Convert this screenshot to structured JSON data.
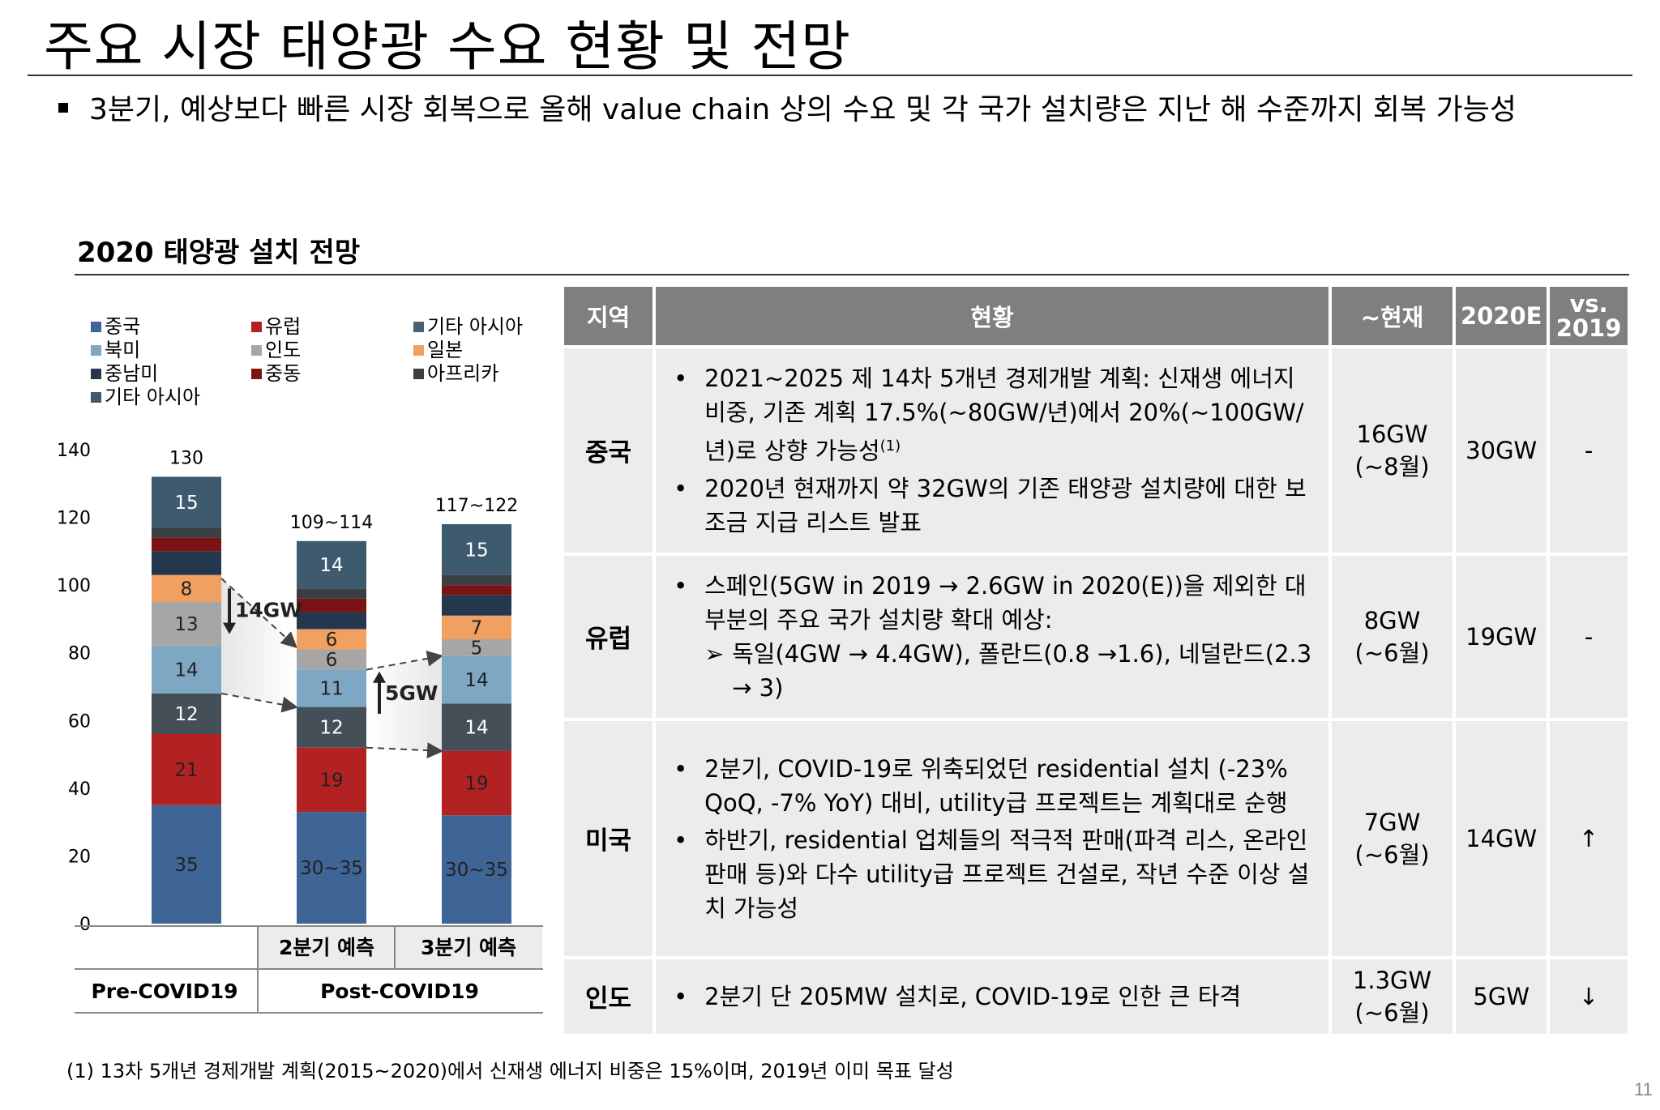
{
  "title": "주요 시장 태양광 수요 현황 및 전망",
  "bullet": "3분기, 예상보다 빠른 시장 회복으로 올해 value chain 상의 수요 및 각 국가 설치량은 지난 해 수준까지 회복 가능성",
  "section_title": "2020 태양광 설치 전망",
  "footnote": "(1) 13차 5개년 경제개발 계획(2015~2020)에서 신재생 에너지 비중은 15%이며, 2019년 이미 목표 달성",
  "page_number": "11",
  "chart_data": {
    "type": "bar",
    "stacked": true,
    "categories": [
      "Pre-COVID19",
      "2분기 예측",
      "3분기 예측"
    ],
    "group_labels": {
      "pre": "Pre-COVID19",
      "post": "Post-COVID19"
    },
    "y_ticks": [
      "0",
      "20",
      "40",
      "60",
      "80",
      "100",
      "120",
      "140"
    ],
    "ylim": [
      0,
      140
    ],
    "totals": [
      "130",
      "109~114",
      "117~122"
    ],
    "annotations": [
      {
        "text": "14GW",
        "direction": "down"
      },
      {
        "text": "5GW",
        "direction": "up"
      }
    ],
    "legend": [
      {
        "name": "중국",
        "color": "#3f6496"
      },
      {
        "name": "유럽",
        "color": "#b22222"
      },
      {
        "name": "기타 아시아",
        "color": "#4b6070"
      },
      {
        "name": "북미",
        "color": "#7ea7c4"
      },
      {
        "name": "인도",
        "color": "#a6a6a6"
      },
      {
        "name": "일본",
        "color": "#f0a060"
      },
      {
        "name": "중남미",
        "color": "#23374e"
      },
      {
        "name": "중동",
        "color": "#7a1414"
      },
      {
        "name": "아프리카",
        "color": "#3a3f44"
      },
      {
        "name": "기타 아시아",
        "color": "#3d5a6e"
      }
    ],
    "series": [
      {
        "name": "중국",
        "color": "#3f6496",
        "values": [
          35,
          33,
          32
        ],
        "labels": [
          "35",
          "30~35",
          "30~35"
        ]
      },
      {
        "name": "유럽",
        "color": "#b22222",
        "values": [
          21,
          19,
          19
        ],
        "labels": [
          "21",
          "19",
          "19"
        ]
      },
      {
        "name": "기타 아시아",
        "color": "#454f58",
        "values": [
          12,
          12,
          14
        ],
        "labels": [
          "12",
          "12",
          "14"
        ]
      },
      {
        "name": "북미",
        "color": "#7ea7c4",
        "values": [
          14,
          11,
          14
        ],
        "labels": [
          "14",
          "11",
          "14"
        ]
      },
      {
        "name": "인도",
        "color": "#a6a6a6",
        "values": [
          13,
          6,
          5
        ],
        "labels": [
          "13",
          "6",
          "5"
        ]
      },
      {
        "name": "일본",
        "color": "#f0a060",
        "values": [
          8,
          6,
          7
        ],
        "labels": [
          "8",
          "6",
          "7"
        ]
      },
      {
        "name": "중남미",
        "color": "#23374e",
        "values": [
          7,
          5,
          6
        ],
        "labels": [
          "",
          "",
          ""
        ]
      },
      {
        "name": "중동",
        "color": "#7a1414",
        "values": [
          4,
          4,
          3
        ],
        "labels": [
          "",
          "",
          ""
        ]
      },
      {
        "name": "아프리카",
        "color": "#3a3f44",
        "values": [
          3,
          3,
          3
        ],
        "labels": [
          "",
          "",
          ""
        ]
      },
      {
        "name": "기타 아시아",
        "color": "#3d5a6e",
        "values": [
          15,
          14,
          15
        ],
        "labels": [
          "15",
          "14",
          "15"
        ]
      }
    ]
  },
  "table": {
    "headers": [
      "지역",
      "현황",
      "~현재",
      "2020E",
      "vs. 2019"
    ],
    "rows": [
      {
        "region": "중국",
        "items": [
          {
            "text": "2021~2025 제 14차 5개년 경제개발 계획: 신재생 에너지 비중, 기존 계획 17.5%(~80GW/년)에서 20%(~100GW/년)로 상향 가능성",
            "sup": "(1)"
          },
          {
            "text": "2020년 현재까지 약 32GW의 기존 태양광 설치량에 대한 보조금 지급 리스트 발표"
          }
        ],
        "now": [
          "16GW",
          "(~8월)"
        ],
        "e2020": "30GW",
        "vs": "-"
      },
      {
        "region": "유럽",
        "items": [
          {
            "text": "스페인(5GW in 2019 → 2.6GW in 2020(E))을 제외한 대부분의 주요 국가 설치량 확대 예상:",
            "sub": "독일(4GW → 4.4GW), 폴란드(0.8 →1.6), 네덜란드(2.3 → 3)"
          }
        ],
        "now": [
          "8GW",
          "(~6월)"
        ],
        "e2020": "19GW",
        "vs": "-"
      },
      {
        "region": "미국",
        "items": [
          {
            "text": "2분기, COVID-19로 위축되었던 residential 설치 (-23% QoQ, -7% YoY) 대비, utility급 프로젝트는 계획대로 순행"
          },
          {
            "text": "하반기, residential 업체들의 적극적 판매(파격 리스, 온라인 판매 등)와 다수 utility급 프로젝트 건설로, 작년 수준 이상 설치 가능성"
          }
        ],
        "now": [
          "7GW",
          "(~6월)"
        ],
        "e2020": "14GW",
        "vs": "↑"
      },
      {
        "region": "인도",
        "items": [
          {
            "text": "2분기 단 205MW 설치로, COVID-19로 인한 큰 타격"
          }
        ],
        "now": [
          "1.3GW",
          "(~6월)"
        ],
        "e2020": "5GW",
        "vs": "↓"
      }
    ]
  }
}
